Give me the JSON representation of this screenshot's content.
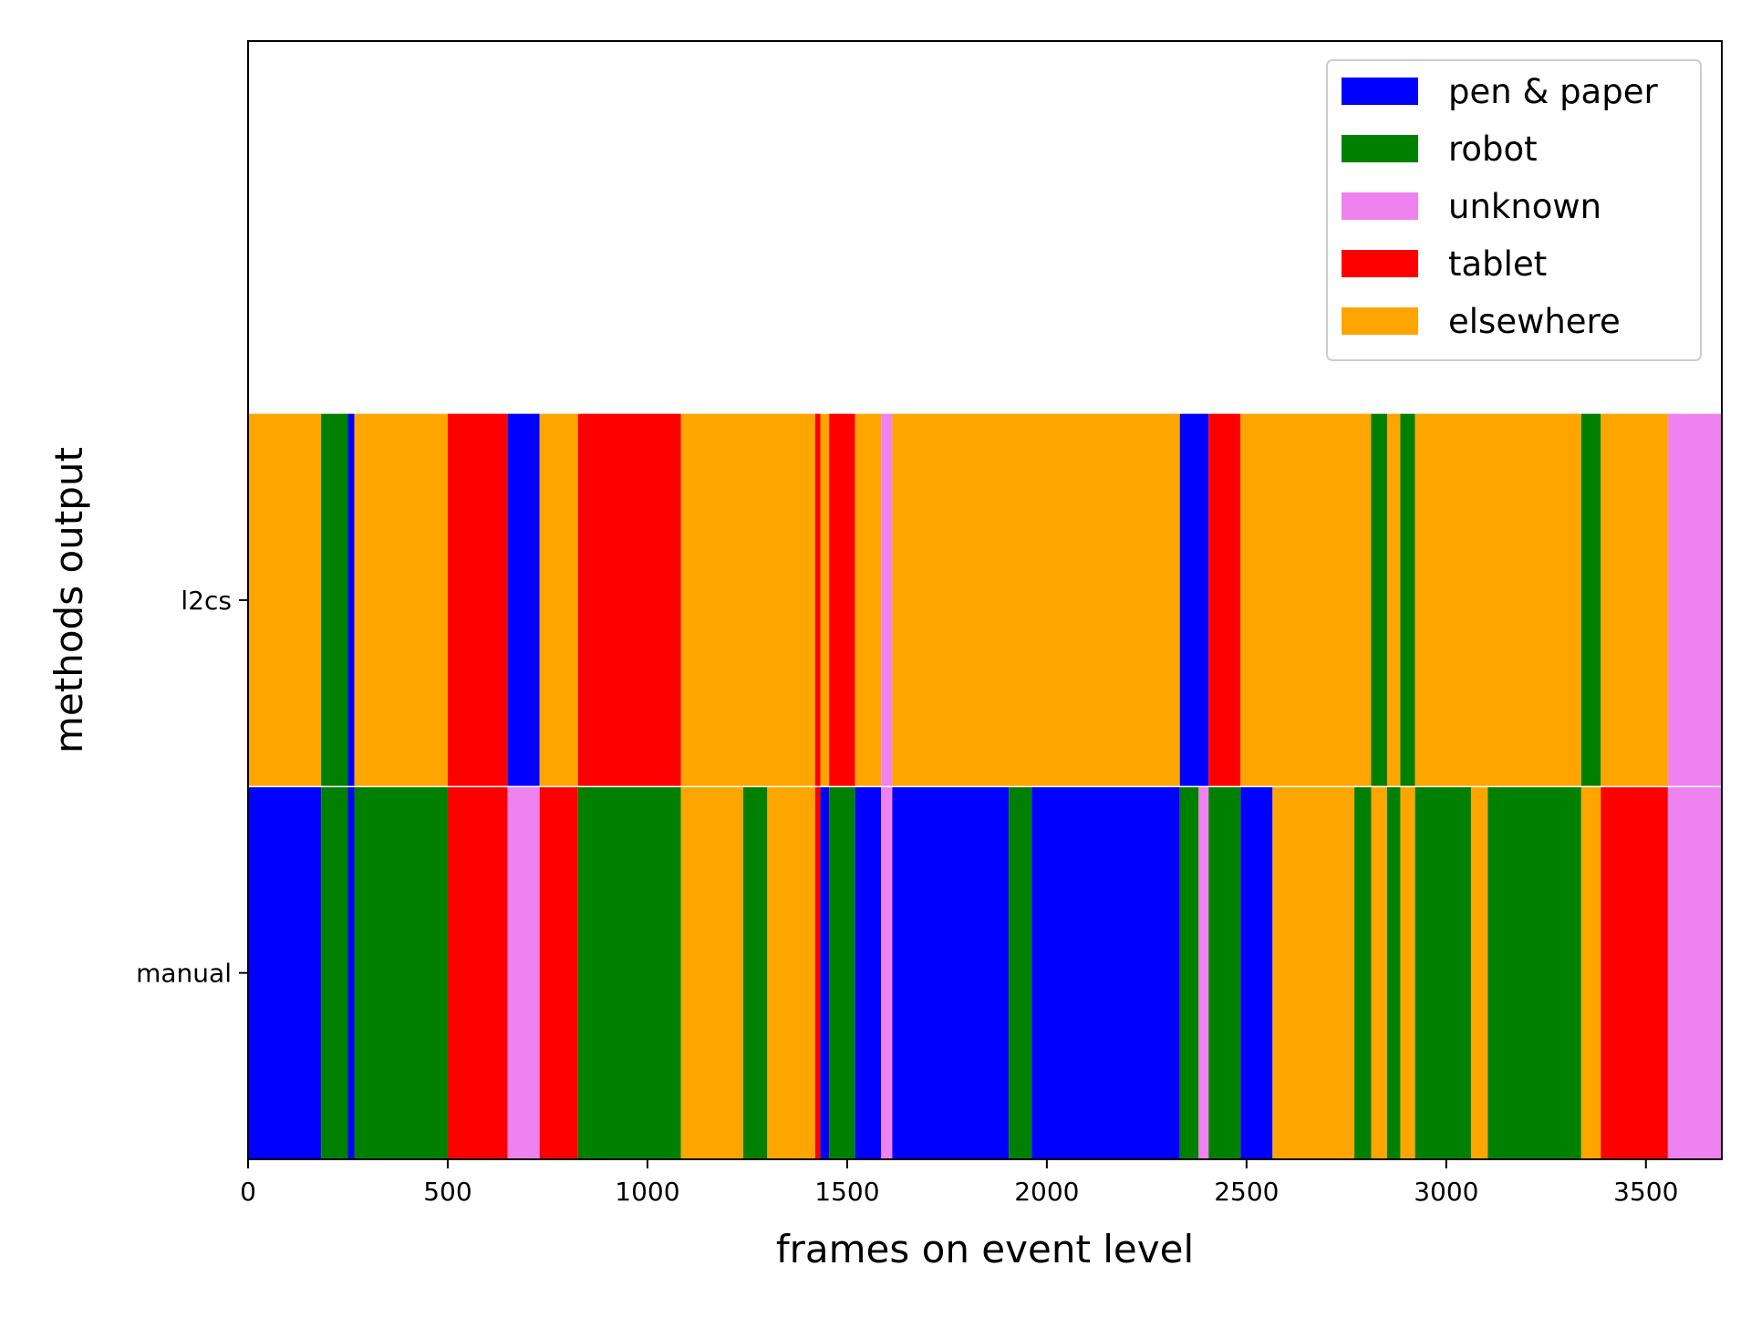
{
  "chart_data": {
    "type": "bar",
    "orientation": "horizontal-stacked-timeline",
    "title": "",
    "xlabel": "frames on event level",
    "ylabel": "methods output",
    "xlim": [
      0,
      3690
    ],
    "xticks": [
      0,
      500,
      1000,
      1500,
      2000,
      2500,
      3000,
      3500
    ],
    "grid": false,
    "legend_position": "top-right",
    "categories": [
      "manual",
      "l2cs"
    ],
    "legend": [
      {
        "key": "pen_paper",
        "label": "pen & paper",
        "color": "#0000ff"
      },
      {
        "key": "robot",
        "label": "robot",
        "color": "#008000"
      },
      {
        "key": "unknown",
        "label": "unknown",
        "color": "#ee82ee"
      },
      {
        "key": "tablet",
        "label": "tablet",
        "color": "#ff0000"
      },
      {
        "key": "elsewhere",
        "label": "elsewhere",
        "color": "#ffa500"
      }
    ],
    "series": [
      {
        "category": "manual",
        "segments": [
          {
            "start": 0,
            "end": 183,
            "label": "pen_paper"
          },
          {
            "start": 183,
            "end": 250,
            "label": "robot"
          },
          {
            "start": 250,
            "end": 266,
            "label": "pen_paper"
          },
          {
            "start": 266,
            "end": 500,
            "label": "robot"
          },
          {
            "start": 500,
            "end": 650,
            "label": "tablet"
          },
          {
            "start": 650,
            "end": 730,
            "label": "unknown"
          },
          {
            "start": 730,
            "end": 826,
            "label": "tablet"
          },
          {
            "start": 826,
            "end": 1084,
            "label": "robot"
          },
          {
            "start": 1084,
            "end": 1240,
            "label": "elsewhere"
          },
          {
            "start": 1240,
            "end": 1300,
            "label": "robot"
          },
          {
            "start": 1300,
            "end": 1420,
            "label": "elsewhere"
          },
          {
            "start": 1420,
            "end": 1433,
            "label": "tablet"
          },
          {
            "start": 1433,
            "end": 1455,
            "label": "pen_paper"
          },
          {
            "start": 1455,
            "end": 1520,
            "label": "robot"
          },
          {
            "start": 1520,
            "end": 1585,
            "label": "pen_paper"
          },
          {
            "start": 1585,
            "end": 1613,
            "label": "unknown"
          },
          {
            "start": 1613,
            "end": 1905,
            "label": "pen_paper"
          },
          {
            "start": 1905,
            "end": 1962,
            "label": "robot"
          },
          {
            "start": 1962,
            "end": 2333,
            "label": "pen_paper"
          },
          {
            "start": 2333,
            "end": 2380,
            "label": "robot"
          },
          {
            "start": 2380,
            "end": 2405,
            "label": "unknown"
          },
          {
            "start": 2405,
            "end": 2485,
            "label": "robot"
          },
          {
            "start": 2485,
            "end": 2565,
            "label": "pen_paper"
          },
          {
            "start": 2565,
            "end": 2770,
            "label": "elsewhere"
          },
          {
            "start": 2770,
            "end": 2812,
            "label": "robot"
          },
          {
            "start": 2812,
            "end": 2852,
            "label": "elsewhere"
          },
          {
            "start": 2852,
            "end": 2885,
            "label": "robot"
          },
          {
            "start": 2885,
            "end": 2922,
            "label": "elsewhere"
          },
          {
            "start": 2922,
            "end": 3062,
            "label": "robot"
          },
          {
            "start": 3062,
            "end": 3104,
            "label": "elsewhere"
          },
          {
            "start": 3104,
            "end": 3338,
            "label": "robot"
          },
          {
            "start": 3338,
            "end": 3387,
            "label": "elsewhere"
          },
          {
            "start": 3387,
            "end": 3555,
            "label": "tablet"
          },
          {
            "start": 3555,
            "end": 3690,
            "label": "unknown"
          }
        ]
      },
      {
        "category": "l2cs",
        "segments": [
          {
            "start": 0,
            "end": 183,
            "label": "elsewhere"
          },
          {
            "start": 183,
            "end": 250,
            "label": "robot"
          },
          {
            "start": 250,
            "end": 266,
            "label": "pen_paper"
          },
          {
            "start": 266,
            "end": 500,
            "label": "elsewhere"
          },
          {
            "start": 500,
            "end": 650,
            "label": "tablet"
          },
          {
            "start": 650,
            "end": 730,
            "label": "pen_paper"
          },
          {
            "start": 730,
            "end": 826,
            "label": "elsewhere"
          },
          {
            "start": 826,
            "end": 1084,
            "label": "tablet"
          },
          {
            "start": 1084,
            "end": 1420,
            "label": "elsewhere"
          },
          {
            "start": 1420,
            "end": 1433,
            "label": "tablet"
          },
          {
            "start": 1433,
            "end": 1455,
            "label": "elsewhere"
          },
          {
            "start": 1455,
            "end": 1520,
            "label": "tablet"
          },
          {
            "start": 1520,
            "end": 1585,
            "label": "elsewhere"
          },
          {
            "start": 1585,
            "end": 1613,
            "label": "unknown"
          },
          {
            "start": 1613,
            "end": 2333,
            "label": "elsewhere"
          },
          {
            "start": 2333,
            "end": 2405,
            "label": "pen_paper"
          },
          {
            "start": 2405,
            "end": 2485,
            "label": "tablet"
          },
          {
            "start": 2485,
            "end": 2812,
            "label": "elsewhere"
          },
          {
            "start": 2812,
            "end": 2852,
            "label": "robot"
          },
          {
            "start": 2852,
            "end": 2885,
            "label": "elsewhere"
          },
          {
            "start": 2885,
            "end": 2922,
            "label": "robot"
          },
          {
            "start": 2922,
            "end": 3338,
            "label": "elsewhere"
          },
          {
            "start": 3338,
            "end": 3387,
            "label": "robot"
          },
          {
            "start": 3387,
            "end": 3555,
            "label": "elsewhere"
          },
          {
            "start": 3555,
            "end": 3690,
            "label": "unknown"
          }
        ]
      }
    ]
  }
}
